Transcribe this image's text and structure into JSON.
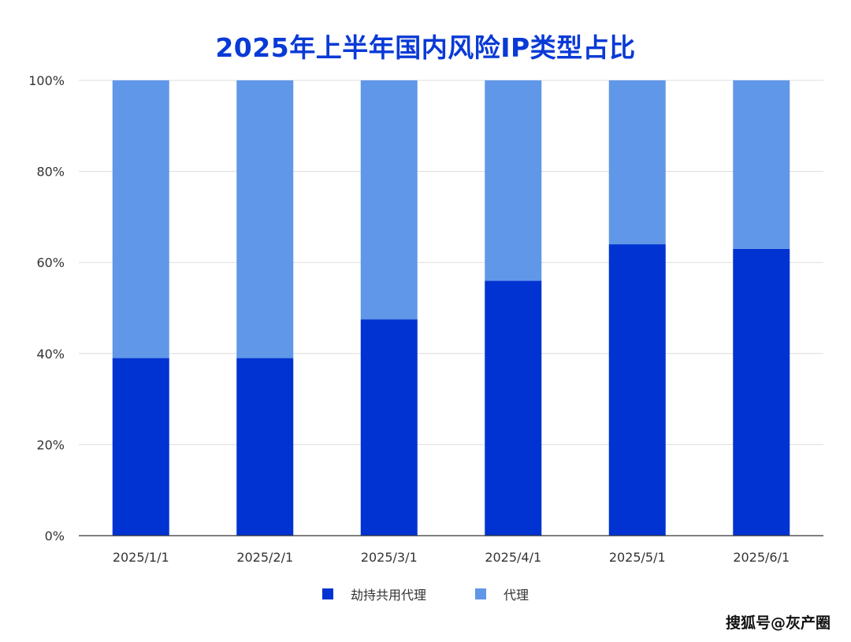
{
  "chart_data": {
    "type": "bar",
    "stacked": true,
    "percent": true,
    "title": "2025年上半年国内风险IP类型占比",
    "categories": [
      "2025/1/1",
      "2025/2/1",
      "2025/3/1",
      "2025/4/1",
      "2025/5/1",
      "2025/6/1"
    ],
    "series": [
      {
        "name": "劫持共用代理",
        "color": "#0033d1",
        "values": [
          39,
          39,
          47.5,
          56,
          64,
          63
        ]
      },
      {
        "name": "代理",
        "color": "#6197e8",
        "values": [
          61,
          61,
          52.5,
          44,
          36,
          37
        ]
      }
    ],
    "y_ticks": [
      "0%",
      "20%",
      "40%",
      "60%",
      "80%",
      "100%"
    ],
    "ylim": [
      0,
      100
    ],
    "grid": true,
    "legend_position": "bottom"
  },
  "watermark_text": "搜狐号@灰产圈"
}
